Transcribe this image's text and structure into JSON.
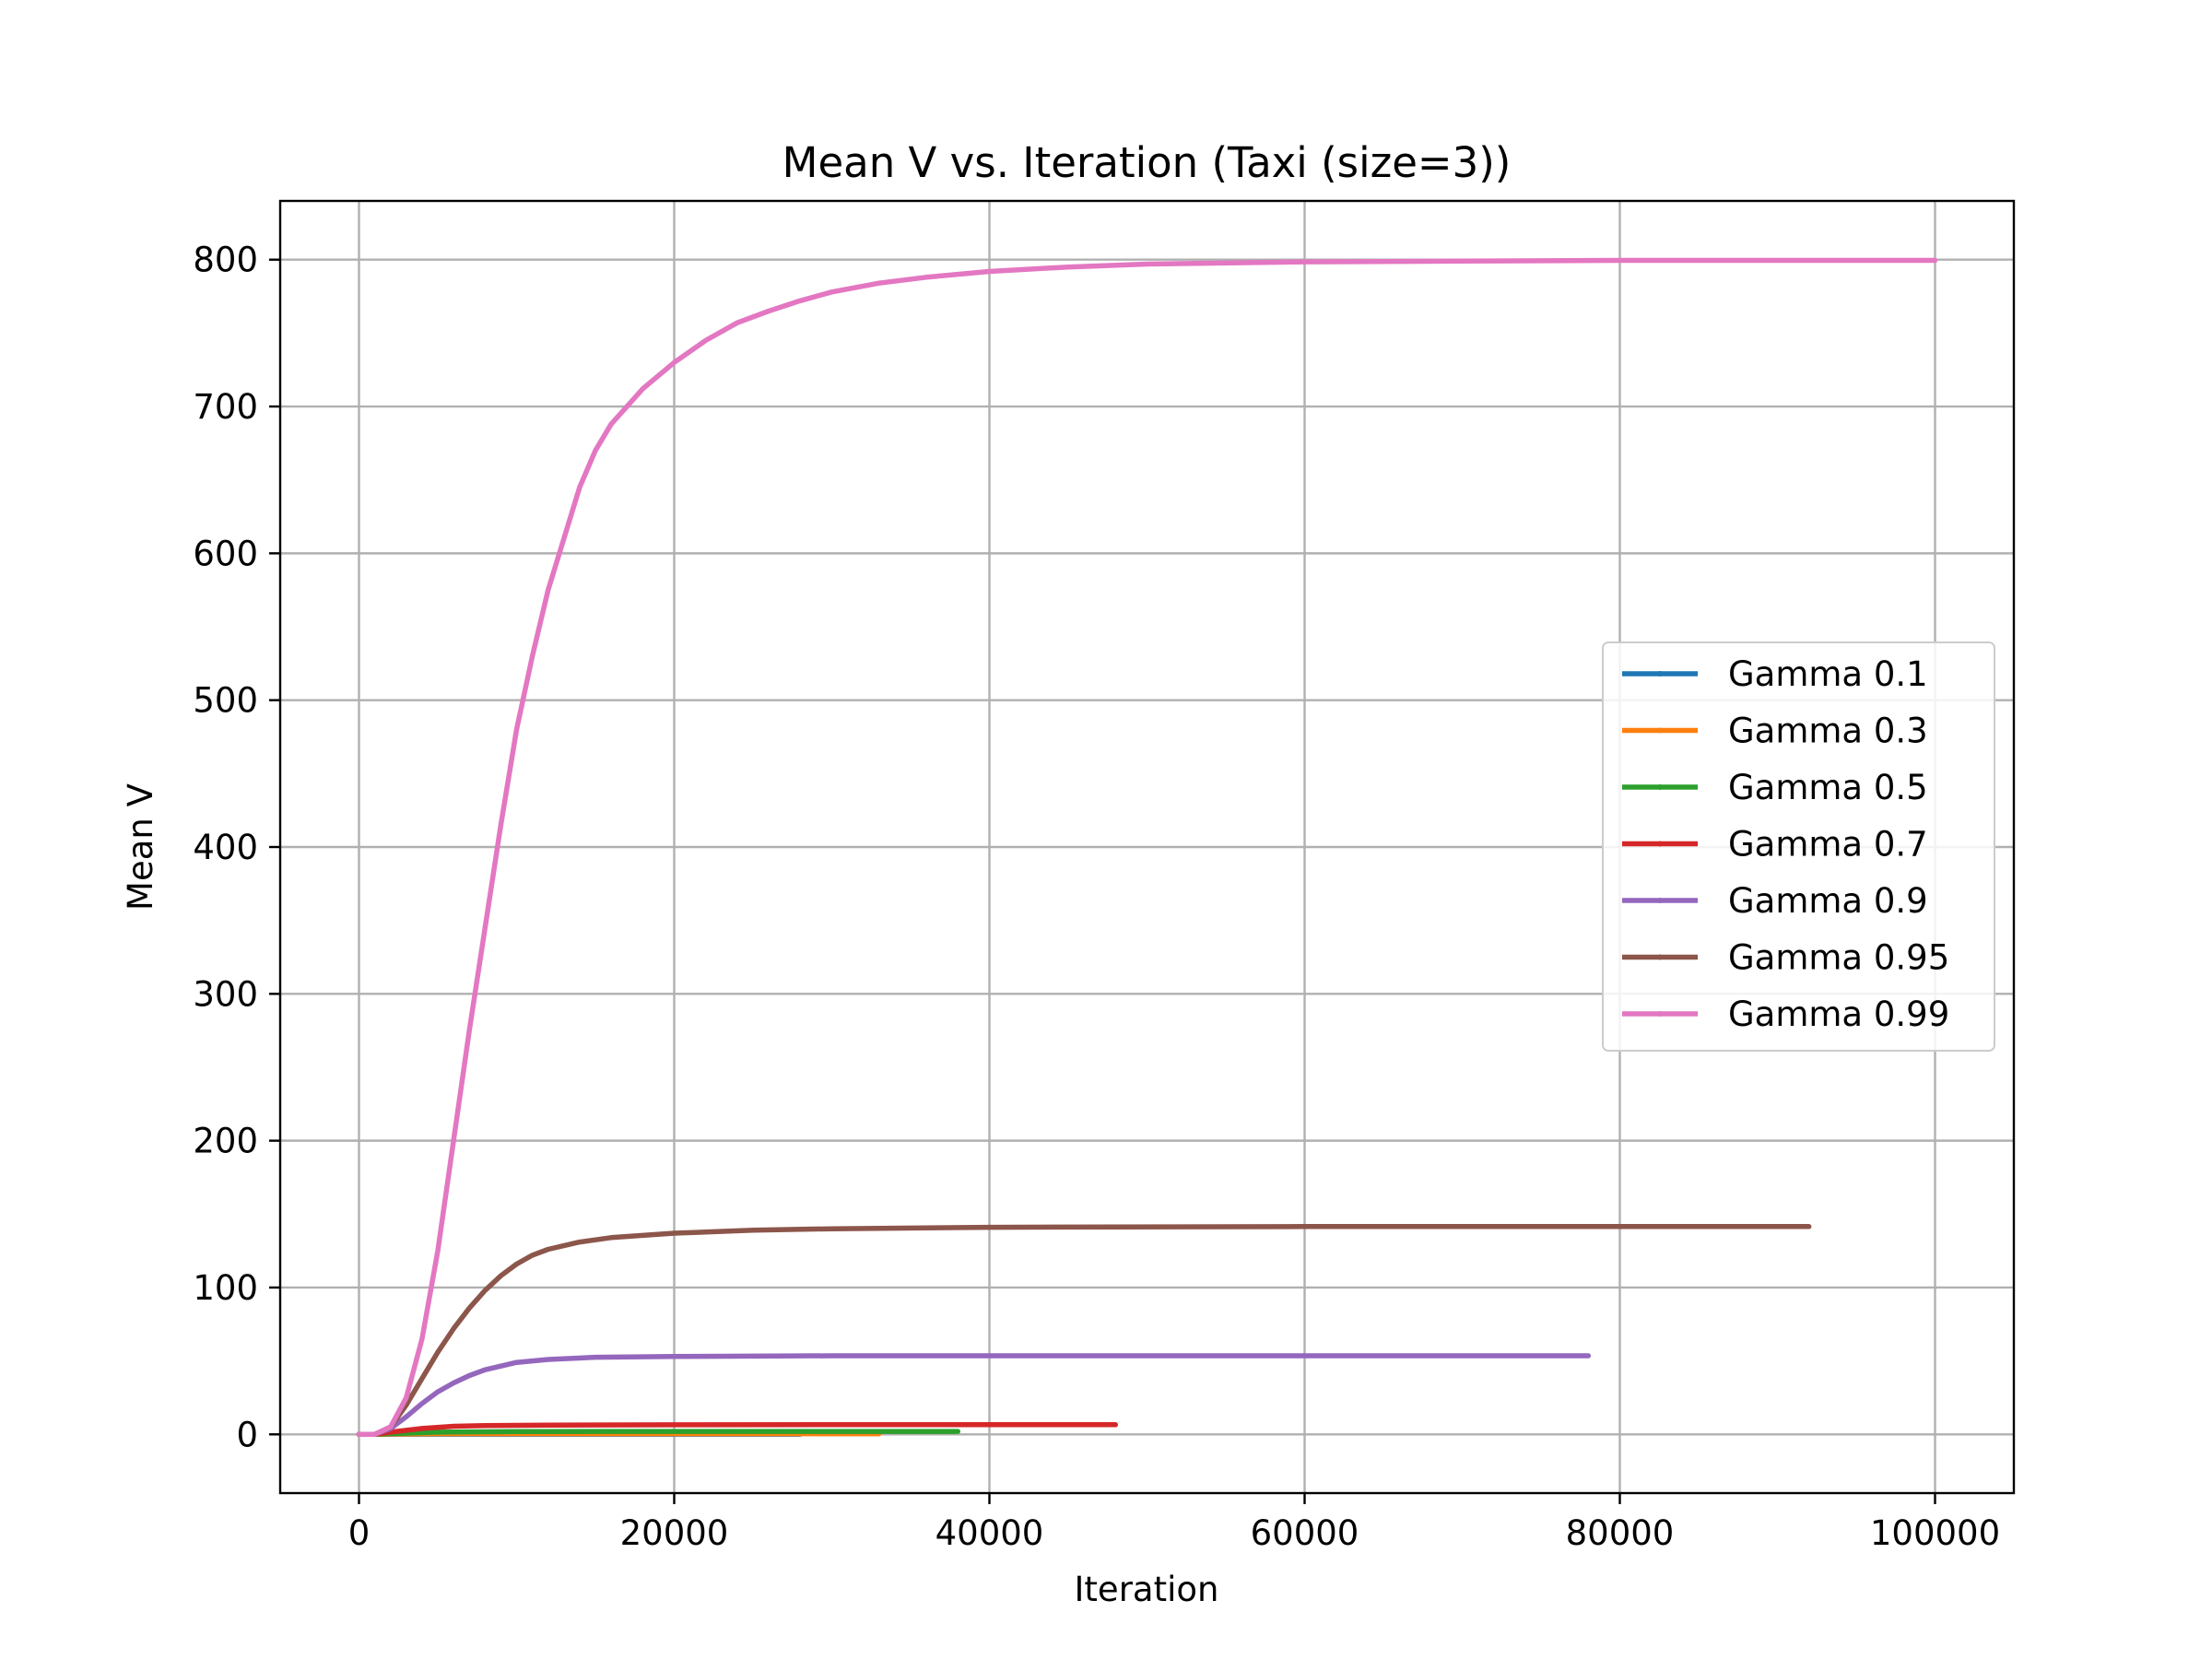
{
  "chart_data": {
    "type": "line",
    "title": "Mean V vs. Iteration (Taxi (size=3))",
    "xlabel": "Iteration",
    "ylabel": "Mean V",
    "xlim": [
      -5000,
      105000
    ],
    "ylim": [
      -40,
      840
    ],
    "xticks": [
      0,
      20000,
      40000,
      60000,
      80000,
      100000
    ],
    "yticks": [
      0,
      100,
      200,
      300,
      400,
      500,
      600,
      700,
      800
    ],
    "grid": true,
    "legend_position": "center-right",
    "series": [
      {
        "name": "Gamma 0.1",
        "color": "#1f77b4",
        "x": [
          0,
          1000,
          2000,
          5000,
          10000,
          20000,
          28000
        ],
        "y": [
          0,
          0,
          0.1,
          0.11,
          0.11,
          0.11,
          0.11
        ]
      },
      {
        "name": "Gamma 0.3",
        "color": "#ff7f0e",
        "x": [
          0,
          1000,
          2000,
          5000,
          10000,
          20000,
          33000
        ],
        "y": [
          0,
          0,
          0.2,
          0.4,
          0.43,
          0.43,
          0.43
        ]
      },
      {
        "name": "Gamma 0.5",
        "color": "#2ca02c",
        "x": [
          0,
          1000,
          2000,
          5000,
          10000,
          20000,
          38000
        ],
        "y": [
          0,
          0,
          0.5,
          1.5,
          1.9,
          2.0,
          2.0
        ]
      },
      {
        "name": "Gamma 0.7",
        "color": "#d62728",
        "x": [
          0,
          1000,
          2000,
          4000,
          6000,
          8000,
          12000,
          20000,
          30000,
          48000
        ],
        "y": [
          0,
          0,
          1.5,
          4,
          5.5,
          6.0,
          6.3,
          6.5,
          6.6,
          6.6
        ]
      },
      {
        "name": "Gamma 0.9",
        "color": "#9467bd",
        "x": [
          0,
          1000,
          2000,
          3000,
          4000,
          5000,
          6000,
          7000,
          8000,
          10000,
          12000,
          15000,
          20000,
          30000,
          50000,
          78000
        ],
        "y": [
          0,
          0,
          4,
          12,
          21,
          29,
          35,
          40,
          44,
          49,
          51,
          52.5,
          53,
          53.5,
          53.5,
          53.5
        ]
      },
      {
        "name": "Gamma 0.95",
        "color": "#8c564b",
        "x": [
          0,
          1000,
          2000,
          3000,
          4000,
          5000,
          6000,
          7000,
          8000,
          9000,
          10000,
          11000,
          12000,
          14000,
          16000,
          20000,
          25000,
          30000,
          40000,
          60000,
          92000
        ],
        "y": [
          0,
          0,
          5,
          20,
          38,
          56,
          72,
          86,
          98,
          108,
          116,
          122,
          126,
          131,
          134,
          137,
          139,
          140,
          141,
          141.5,
          141.5
        ]
      },
      {
        "name": "Gamma 0.99",
        "color": "#e377c2",
        "x": [
          0,
          1000,
          2000,
          3000,
          4000,
          5000,
          6000,
          7000,
          8000,
          9000,
          10000,
          11000,
          12000,
          13000,
          14000,
          15000,
          16000,
          18000,
          20000,
          22000,
          24000,
          26000,
          28000,
          30000,
          33000,
          36000,
          40000,
          45000,
          50000,
          60000,
          70000,
          80000,
          100000
        ],
        "y": [
          0,
          0,
          5,
          25,
          65,
          125,
          200,
          275,
          345,
          415,
          480,
          530,
          575,
          610,
          645,
          670,
          688,
          712,
          730,
          745,
          757,
          765,
          772,
          778,
          784,
          788,
          792,
          795,
          797,
          798.5,
          799,
          799.5,
          799.5
        ]
      }
    ]
  }
}
